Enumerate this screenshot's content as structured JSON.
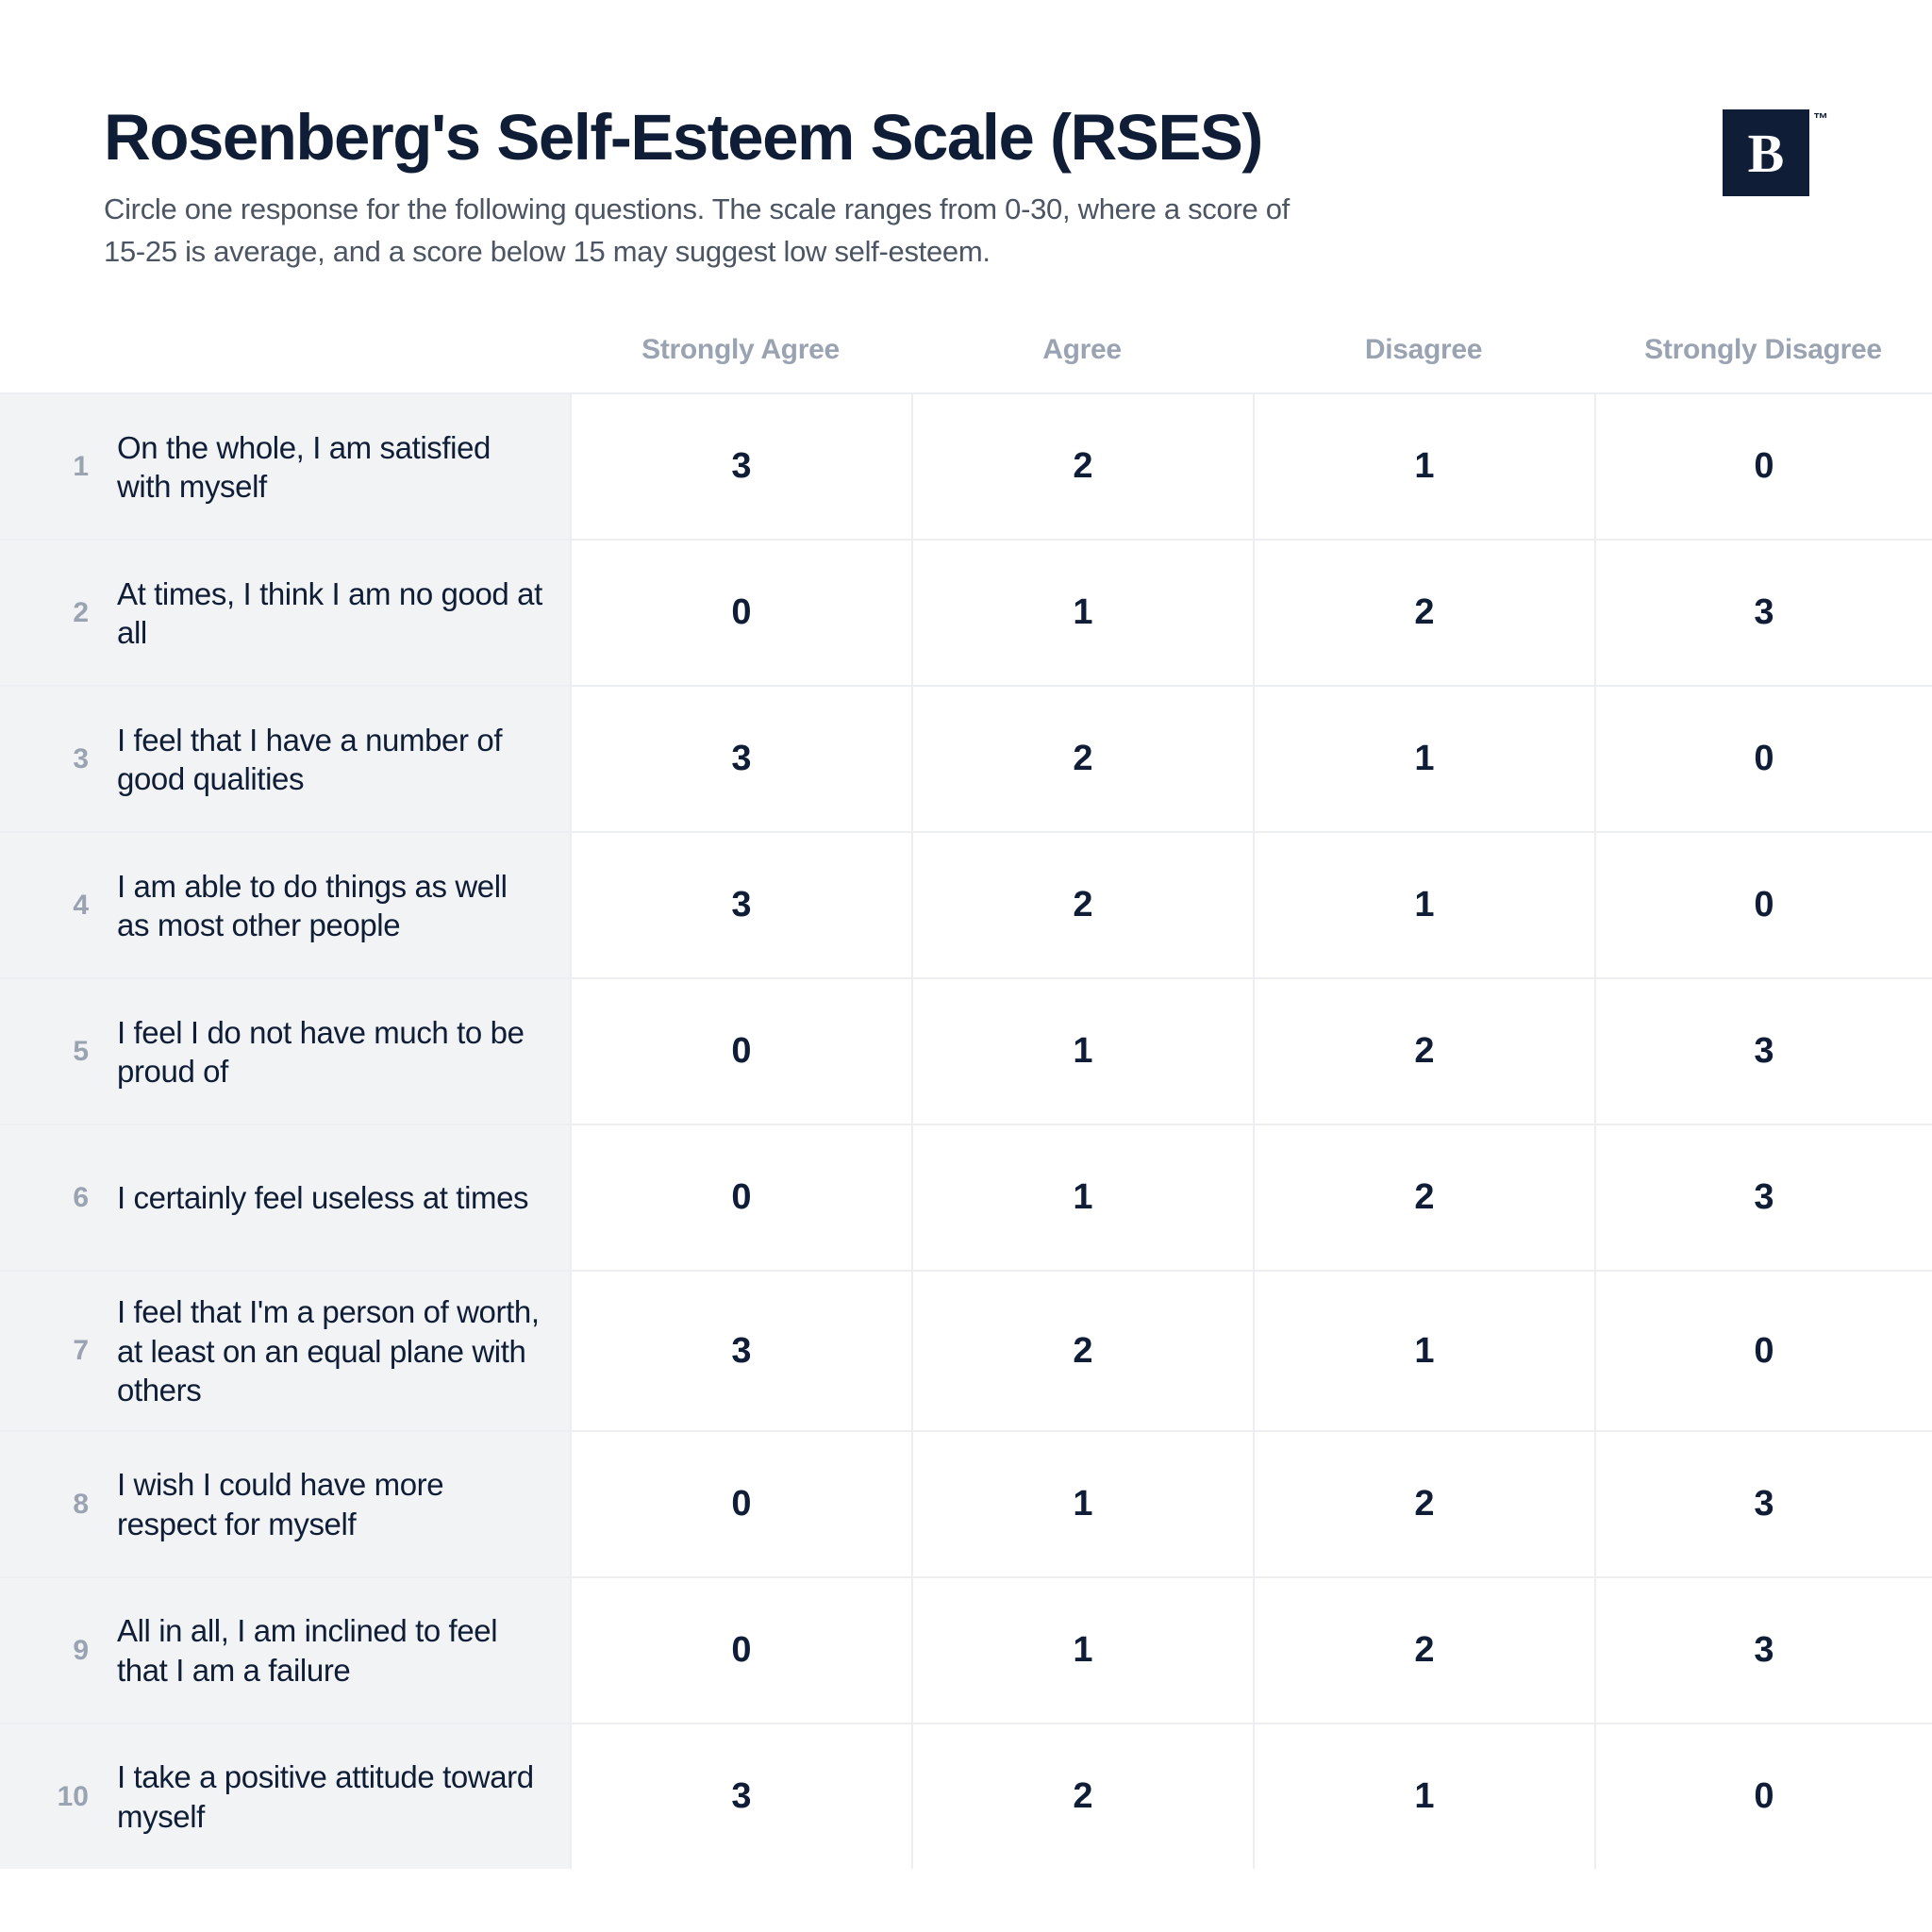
{
  "title": "Rosenberg's Self-Esteem Scale (RSES)",
  "subtitle": "Circle one response for the following questions. The scale ranges from 0-30, where a score of 15-25 is average, and a score below 15 may suggest low self-esteem.",
  "logo": {
    "letter": "B",
    "tm": "™",
    "bg": "#0f1d36",
    "fg": "#ffffff"
  },
  "colors": {
    "text_primary": "#0f1d36",
    "text_muted": "#9aa3b2",
    "text_subtitle": "#4b5563",
    "row_border": "#eceef1",
    "question_bg": "#f2f3f4",
    "page_bg": "#ffffff"
  },
  "columns": [
    "Strongly Agree",
    "Agree",
    "Disagree",
    "Strongly Disagree"
  ],
  "font_sizes": {
    "title": 69,
    "subtitle": 31,
    "column_header": 30,
    "question_num": 30,
    "question_text": 33,
    "value": 38
  },
  "questions": [
    {
      "n": "1",
      "text": "On the whole, I am satisfied with myself",
      "values": [
        "3",
        "2",
        "1",
        "0"
      ]
    },
    {
      "n": "2",
      "text": "At times, I think I am no good at all",
      "values": [
        "0",
        "1",
        "2",
        "3"
      ]
    },
    {
      "n": "3",
      "text": "I feel that I have a number of good qualities",
      "values": [
        "3",
        "2",
        "1",
        "0"
      ]
    },
    {
      "n": "4",
      "text": "I am able to do things as well as most other people",
      "values": [
        "3",
        "2",
        "1",
        "0"
      ]
    },
    {
      "n": "5",
      "text": "I feel I do not have much to be proud of",
      "values": [
        "0",
        "1",
        "2",
        "3"
      ]
    },
    {
      "n": "6",
      "text": "I certainly feel useless at times",
      "values": [
        "0",
        "1",
        "2",
        "3"
      ]
    },
    {
      "n": "7",
      "text": "I feel that I'm a person of worth, at least on an equal plane with others",
      "values": [
        "3",
        "2",
        "1",
        "0"
      ]
    },
    {
      "n": "8",
      "text": "I wish I could have more respect for myself",
      "values": [
        "0",
        "1",
        "2",
        "3"
      ]
    },
    {
      "n": "9",
      "text": "All in all, I am inclined to feel that I am a failure",
      "values": [
        "0",
        "1",
        "2",
        "3"
      ]
    },
    {
      "n": "10",
      "text": "I take a positive attitude toward myself",
      "values": [
        "3",
        "2",
        "1",
        "0"
      ]
    }
  ]
}
